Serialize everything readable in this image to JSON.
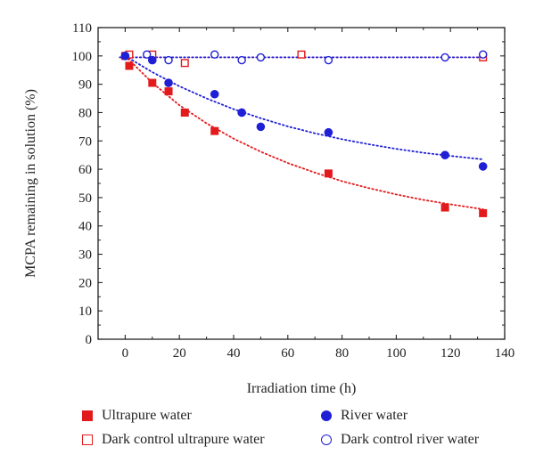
{
  "chart_data": {
    "type": "scatter",
    "title": "",
    "xlabel": "Irradiation time (h)",
    "ylabel": "MCPA remaining in solution (%)",
    "xlim": [
      -10,
      140
    ],
    "ylim": [
      0,
      110
    ],
    "xticks": [
      0,
      20,
      40,
      60,
      80,
      100,
      120,
      140
    ],
    "yticks": [
      0,
      10,
      20,
      30,
      40,
      50,
      60,
      70,
      80,
      90,
      100,
      110
    ],
    "grid": false,
    "legend_position": "bottom",
    "series": [
      {
        "name": "Ultrapure water",
        "color": "#e31a1c",
        "marker": "square-filled",
        "x": [
          0,
          1.5,
          10,
          16,
          22,
          33,
          75,
          118,
          132
        ],
        "y": [
          100,
          96.5,
          90.5,
          87.5,
          80,
          73.5,
          58.5,
          46.5,
          44.5
        ],
        "fit": {
          "x": [
            0,
            10,
            20,
            30,
            40,
            50,
            60,
            70,
            80,
            90,
            100,
            110,
            120,
            132
          ],
          "y": [
            100,
            90.5,
            82.6,
            76.2,
            70.8,
            66.2,
            62.2,
            58.8,
            55.8,
            53.3,
            51.1,
            49.2,
            47.6,
            45.9
          ]
        }
      },
      {
        "name": "Dark control ultrapure water",
        "color": "#e31a1c",
        "marker": "square-open",
        "x": [
          1.5,
          10,
          22,
          65,
          132
        ],
        "y": [
          100.5,
          100.5,
          97.5,
          100.5,
          99.5
        ],
        "fit": {
          "x": [
            -2,
            132
          ],
          "y": [
            99.5,
            99.5
          ]
        }
      },
      {
        "name": "River water",
        "color": "#1f1fd6",
        "marker": "circle-filled",
        "x": [
          0,
          10,
          16,
          33,
          43,
          50,
          75,
          118,
          132
        ],
        "y": [
          100,
          98.5,
          90.5,
          86.5,
          80,
          75,
          73,
          65,
          61
        ],
        "fit": {
          "x": [
            0,
            10,
            20,
            30,
            40,
            50,
            60,
            70,
            80,
            90,
            100,
            110,
            120,
            132
          ],
          "y": [
            100,
            94.3,
            89.3,
            85,
            81.2,
            78,
            75.1,
            72.7,
            70.6,
            68.8,
            67.2,
            65.8,
            64.7,
            63.5
          ]
        }
      },
      {
        "name": "Dark control river water",
        "color": "#1f1fd6",
        "marker": "circle-open",
        "x": [
          8,
          16,
          33,
          43,
          50,
          75,
          118,
          132
        ],
        "y": [
          100.5,
          98.5,
          100.5,
          98.5,
          99.5,
          98.5,
          99.5,
          100.5
        ],
        "fit": {
          "x": [
            -2,
            132
          ],
          "y": [
            99.5,
            99.5
          ]
        }
      }
    ]
  },
  "legend": {
    "items": [
      {
        "label": "Ultrapure water"
      },
      {
        "label": "River water"
      },
      {
        "label": "Dark control ultrapure water"
      },
      {
        "label": "Dark control river water"
      }
    ]
  }
}
